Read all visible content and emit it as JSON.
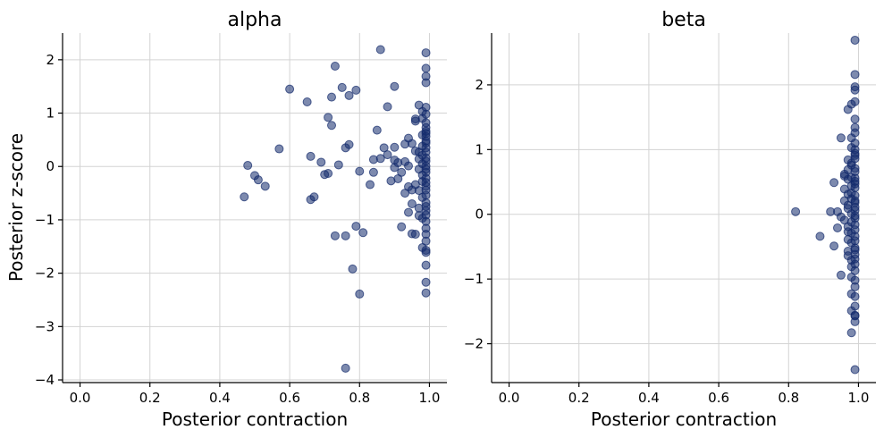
{
  "colors": {
    "point": "#132a6b",
    "grid": "#d3d3d3"
  },
  "chart_data": [
    {
      "type": "scatter",
      "title": "alpha",
      "xlabel": "Posterior contraction",
      "ylabel": "Posterior z-score",
      "xlim": [
        -0.05,
        1.05
      ],
      "ylim": [
        -4.05,
        2.5
      ],
      "xticks": [
        0.0,
        0.2,
        0.4,
        0.6,
        0.8,
        1.0
      ],
      "xtick_labels": [
        "0.0",
        "0.2",
        "0.4",
        "0.6",
        "0.8",
        "1.0"
      ],
      "yticks": [
        -4,
        -3,
        -2,
        -1,
        0,
        1,
        2
      ],
      "ytick_labels": [
        "−4",
        "−3",
        "−2",
        "−1",
        "0",
        "1",
        "2"
      ],
      "grid": true,
      "points": [
        [
          0.47,
          -0.57
        ],
        [
          0.48,
          0.02
        ],
        [
          0.5,
          -0.17
        ],
        [
          0.51,
          -0.25
        ],
        [
          0.53,
          -0.37
        ],
        [
          0.57,
          0.33
        ],
        [
          0.6,
          1.45
        ],
        [
          0.65,
          1.21
        ],
        [
          0.66,
          0.19
        ],
        [
          0.66,
          -0.62
        ],
        [
          0.67,
          -0.57
        ],
        [
          0.69,
          0.08
        ],
        [
          0.7,
          -0.15
        ],
        [
          0.71,
          -0.13
        ],
        [
          0.71,
          0.92
        ],
        [
          0.72,
          1.3
        ],
        [
          0.72,
          0.77
        ],
        [
          0.73,
          -1.3
        ],
        [
          0.73,
          1.88
        ],
        [
          0.74,
          0.03
        ],
        [
          0.75,
          1.48
        ],
        [
          0.76,
          0.35
        ],
        [
          0.76,
          -1.3
        ],
        [
          0.77,
          1.33
        ],
        [
          0.77,
          0.41
        ],
        [
          0.78,
          -1.92
        ],
        [
          0.79,
          1.43
        ],
        [
          0.79,
          -1.12
        ],
        [
          0.8,
          -0.09
        ],
        [
          0.8,
          -2.39
        ],
        [
          0.81,
          -1.24
        ],
        [
          0.76,
          -3.78
        ],
        [
          0.83,
          -0.34
        ],
        [
          0.84,
          0.13
        ],
        [
          0.84,
          -0.11
        ],
        [
          0.85,
          0.68
        ],
        [
          0.86,
          0.15
        ],
        [
          0.86,
          2.19
        ],
        [
          0.87,
          0.35
        ],
        [
          0.88,
          1.12
        ],
        [
          0.88,
          0.22
        ],
        [
          0.89,
          -0.27
        ],
        [
          0.9,
          -0.02
        ],
        [
          0.9,
          0.36
        ],
        [
          0.9,
          0.12
        ],
        [
          0.9,
          1.5
        ],
        [
          0.91,
          -0.23
        ],
        [
          0.91,
          0.07
        ],
        [
          0.92,
          -1.13
        ],
        [
          0.92,
          -0.11
        ],
        [
          0.93,
          0.42
        ],
        [
          0.93,
          0.09
        ],
        [
          0.93,
          -0.5
        ],
        [
          0.94,
          0.01
        ],
        [
          0.94,
          -0.38
        ],
        [
          0.94,
          0.53
        ],
        [
          0.94,
          -0.86
        ],
        [
          0.95,
          -1.26
        ],
        [
          0.95,
          -0.7
        ],
        [
          0.95,
          0.43
        ],
        [
          0.95,
          -0.44
        ],
        [
          0.96,
          0.89
        ],
        [
          0.96,
          0.29
        ],
        [
          0.96,
          -0.34
        ],
        [
          0.96,
          -1.27
        ],
        [
          0.96,
          0.85
        ],
        [
          0.97,
          -0.78
        ],
        [
          0.97,
          0.27
        ],
        [
          0.97,
          -0.45
        ],
        [
          0.97,
          0.14
        ],
        [
          0.97,
          -0.92
        ],
        [
          0.97,
          1.15
        ],
        [
          0.97,
          -0.05
        ],
        [
          0.98,
          0.05
        ],
        [
          0.98,
          -0.58
        ],
        [
          0.98,
          0.59
        ],
        [
          0.98,
          -1.52
        ],
        [
          0.98,
          1.03
        ],
        [
          0.98,
          -0.28
        ],
        [
          0.98,
          0.21
        ],
        [
          0.98,
          0.9
        ],
        [
          0.98,
          -0.97
        ],
        [
          0.98,
          0.38
        ],
        [
          0.98,
          -0.16
        ],
        [
          0.99,
          -1.57
        ],
        [
          0.99,
          -0.68
        ],
        [
          0.99,
          0.73
        ],
        [
          0.99,
          -1.85
        ],
        [
          0.99,
          -0.37
        ],
        [
          0.99,
          0.62
        ],
        [
          0.99,
          1.57
        ],
        [
          0.99,
          -2.17
        ],
        [
          0.99,
          -0.83
        ],
        [
          0.99,
          0.01
        ],
        [
          0.99,
          0.48
        ],
        [
          0.99,
          1.11
        ],
        [
          0.99,
          -0.54
        ],
        [
          0.99,
          -1.27
        ],
        [
          0.99,
          0.35
        ],
        [
          0.99,
          -0.22
        ],
        [
          0.99,
          1.69
        ],
        [
          0.99,
          -2.37
        ],
        [
          0.99,
          0.16
        ],
        [
          0.99,
          -1.03
        ],
        [
          0.99,
          0.82
        ],
        [
          0.99,
          -0.11
        ],
        [
          0.99,
          1.84
        ],
        [
          0.99,
          2.13
        ],
        [
          0.99,
          -1.4
        ],
        [
          0.99,
          0.98
        ],
        [
          0.99,
          -0.44
        ],
        [
          0.99,
          0.27
        ],
        [
          0.99,
          -1.61
        ],
        [
          0.99,
          0.1
        ],
        [
          0.99,
          -0.91
        ],
        [
          0.99,
          0.66
        ],
        [
          0.99,
          -0.3
        ],
        [
          0.99,
          0.44
        ],
        [
          0.99,
          -0.75
        ],
        [
          0.99,
          -1.16
        ],
        [
          0.99,
          0.56
        ],
        [
          0.99,
          -0.05
        ]
      ]
    },
    {
      "type": "scatter",
      "title": "beta",
      "xlabel": "Posterior contraction",
      "ylabel": "",
      "xlim": [
        -0.05,
        1.05
      ],
      "ylim": [
        -2.6,
        2.8
      ],
      "xticks": [
        0.0,
        0.2,
        0.4,
        0.6,
        0.8,
        1.0
      ],
      "xtick_labels": [
        "0.0",
        "0.2",
        "0.4",
        "0.6",
        "0.8",
        "1.0"
      ],
      "yticks": [
        -2,
        -1,
        0,
        1,
        2
      ],
      "ytick_labels": [
        "−2",
        "−1",
        "0",
        "1",
        "2"
      ],
      "grid": true,
      "points": [
        [
          0.82,
          0.04
        ],
        [
          0.89,
          -0.34
        ],
        [
          0.92,
          0.04
        ],
        [
          0.93,
          -0.49
        ],
        [
          0.93,
          0.49
        ],
        [
          0.94,
          -0.21
        ],
        [
          0.94,
          0.04
        ],
        [
          0.95,
          1.18
        ],
        [
          0.95,
          -0.94
        ],
        [
          0.95,
          -0.04
        ],
        [
          0.96,
          0.59
        ],
        [
          0.96,
          0.21
        ],
        [
          0.96,
          0.39
        ],
        [
          0.96,
          -0.09
        ],
        [
          0.96,
          0.62
        ],
        [
          0.97,
          1.62
        ],
        [
          0.97,
          -0.27
        ],
        [
          0.97,
          0.84
        ],
        [
          0.97,
          0.14
        ],
        [
          0.97,
          -0.57
        ],
        [
          0.97,
          0.31
        ],
        [
          0.97,
          -0.64
        ],
        [
          0.97,
          0.54
        ],
        [
          0.97,
          -0.39
        ],
        [
          0.97,
          0.69
        ],
        [
          0.97,
          0.09
        ],
        [
          0.97,
          -0.19
        ],
        [
          0.98,
          1.18
        ],
        [
          0.98,
          -0.81
        ],
        [
          0.98,
          0.76
        ],
        [
          0.98,
          -0.12
        ],
        [
          0.98,
          1.03
        ],
        [
          0.98,
          0.44
        ],
        [
          0.98,
          -1.49
        ],
        [
          0.98,
          -0.44
        ],
        [
          0.98,
          0.24
        ],
        [
          0.98,
          -1.83
        ],
        [
          0.98,
          0.57
        ],
        [
          0.98,
          -0.29
        ],
        [
          0.98,
          1.7
        ],
        [
          0.98,
          -0.71
        ],
        [
          0.98,
          0.01
        ],
        [
          0.98,
          -0.97
        ],
        [
          0.98,
          0.33
        ],
        [
          0.98,
          -1.23
        ],
        [
          0.98,
          0.79
        ],
        [
          0.99,
          -0.06
        ],
        [
          0.99,
          1.47
        ],
        [
          0.99,
          0.51
        ],
        [
          0.99,
          -0.52
        ],
        [
          0.99,
          2.69
        ],
        [
          0.99,
          0.18
        ],
        [
          0.99,
          -1.56
        ],
        [
          0.99,
          0.94
        ],
        [
          0.99,
          -0.34
        ],
        [
          0.99,
          1.97
        ],
        [
          0.99,
          -2.4
        ],
        [
          0.99,
          0.66
        ],
        [
          0.99,
          -0.87
        ],
        [
          0.99,
          0.11
        ],
        [
          0.99,
          2.16
        ],
        [
          0.99,
          -1.12
        ],
        [
          0.99,
          1.26
        ],
        [
          0.99,
          -0.16
        ],
        [
          0.99,
          0.41
        ],
        [
          0.99,
          -0.62
        ],
        [
          0.99,
          1.74
        ],
        [
          0.99,
          -1.42
        ],
        [
          0.99,
          0.86
        ],
        [
          0.99,
          -0.02
        ],
        [
          0.99,
          1.92
        ],
        [
          0.99,
          -1.66
        ],
        [
          0.99,
          0.29
        ],
        [
          0.99,
          -0.77
        ],
        [
          0.99,
          1.1
        ],
        [
          0.99,
          -1.27
        ],
        [
          0.99,
          0.71
        ],
        [
          0.99,
          -0.41
        ],
        [
          0.99,
          0.56
        ],
        [
          0.99,
          -1.02
        ],
        [
          0.99,
          0.06
        ],
        [
          0.99,
          1.34
        ],
        [
          0.99,
          -0.24
        ],
        [
          0.99,
          0.47
        ],
        [
          0.99,
          -0.69
        ],
        [
          0.99,
          0.91
        ],
        [
          0.99,
          -1.57
        ],
        [
          0.99,
          0.21
        ],
        [
          0.99,
          -0.55
        ],
        [
          0.99,
          1.0
        ]
      ]
    }
  ]
}
